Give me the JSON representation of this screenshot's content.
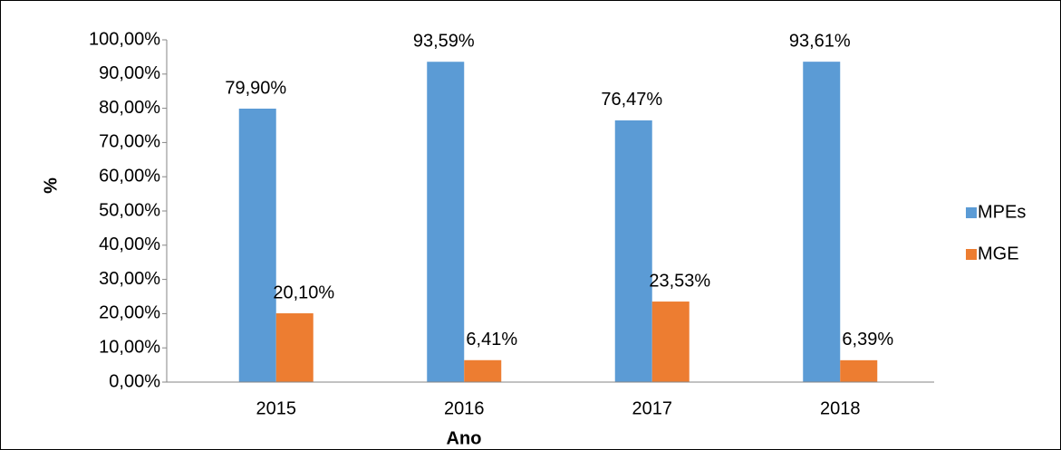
{
  "chart_data": {
    "type": "bar",
    "categories": [
      "2015",
      "2016",
      "2017",
      "2018"
    ],
    "series": [
      {
        "name": "MPEs",
        "color": "#5b9bd5",
        "values": [
          79.9,
          93.59,
          76.47,
          93.61
        ],
        "value_labels": [
          "79,90%",
          "93,59%",
          "76,47%",
          "93,61%"
        ]
      },
      {
        "name": "MGE",
        "color": "#ed7d31",
        "values": [
          20.1,
          6.41,
          23.53,
          6.39
        ],
        "value_labels": [
          "20,10%",
          "6,41%",
          "23,53%",
          "6,39%"
        ]
      }
    ],
    "ylabel": "%",
    "xlabel": "Ano",
    "ylim": [
      0,
      100
    ],
    "yticks": [
      {
        "value": 0,
        "label": "0,00%"
      },
      {
        "value": 10,
        "label": "10,00%"
      },
      {
        "value": 20,
        "label": "20,00%"
      },
      {
        "value": 30,
        "label": "30,00%"
      },
      {
        "value": 40,
        "label": "40,00%"
      },
      {
        "value": 50,
        "label": "50,00%"
      },
      {
        "value": 60,
        "label": "60,00%"
      },
      {
        "value": 70,
        "label": "70,00%"
      },
      {
        "value": 80,
        "label": "80,00%"
      },
      {
        "value": 90,
        "label": "90,00%"
      },
      {
        "value": 100,
        "label": "100,00%"
      }
    ],
    "grid": false,
    "legend": "right"
  }
}
